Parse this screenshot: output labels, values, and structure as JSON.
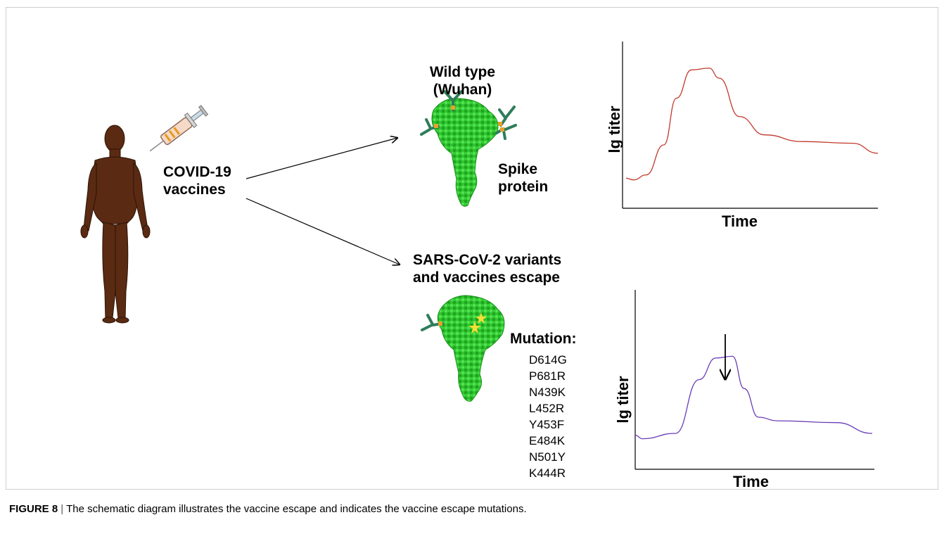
{
  "figure": {
    "figure_number": "FIGURE 8",
    "separator": "|",
    "caption": "The schematic diagram illustrates the vaccine escape and indicates the vaccine escape mutations."
  },
  "vaccine": {
    "line1": "COVID-19",
    "line2": "vaccines"
  },
  "wild_type": {
    "line1": "Wild type",
    "line2": "(Wuhan)"
  },
  "spike": {
    "line1": "Spike",
    "line2": "protein"
  },
  "variants": {
    "line1": "SARS-CoV-2 variants",
    "line2": "and vaccines escape"
  },
  "mutation": {
    "heading": "Mutation:",
    "items": [
      "D614G",
      "P681R",
      "N439K",
      "L452R",
      "Y453F",
      "E484K",
      "N501Y",
      "K444R"
    ]
  },
  "chart_data": [
    {
      "type": "line",
      "xlabel": "Time",
      "ylabel": "lg titer",
      "series_color": "#c0392b",
      "curve": [
        [
          0,
          0.18
        ],
        [
          0.03,
          0.17
        ],
        [
          0.08,
          0.2
        ],
        [
          0.15,
          0.38
        ],
        [
          0.2,
          0.66
        ],
        [
          0.26,
          0.83
        ],
        [
          0.33,
          0.84
        ],
        [
          0.37,
          0.78
        ],
        [
          0.45,
          0.55
        ],
        [
          0.55,
          0.44
        ],
        [
          0.7,
          0.4
        ],
        [
          0.9,
          0.39
        ],
        [
          1.0,
          0.33
        ]
      ]
    },
    {
      "type": "line",
      "xlabel": "Time",
      "ylabel": "lg titer",
      "series_color": "#6a3bb5",
      "annotation": "arrow at peak",
      "curve": [
        [
          0,
          0.19
        ],
        [
          0.03,
          0.17
        ],
        [
          0.17,
          0.2
        ],
        [
          0.27,
          0.5
        ],
        [
          0.34,
          0.62
        ],
        [
          0.41,
          0.63
        ],
        [
          0.46,
          0.45
        ],
        [
          0.52,
          0.29
        ],
        [
          0.6,
          0.27
        ],
        [
          0.85,
          0.26
        ],
        [
          1.0,
          0.2
        ]
      ]
    }
  ]
}
